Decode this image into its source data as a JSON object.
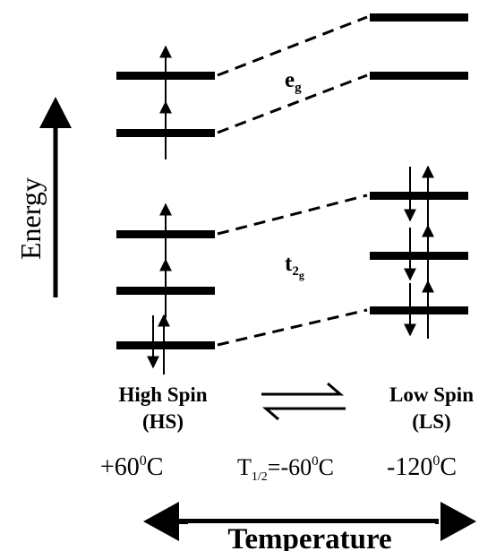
{
  "axis": {
    "energy_label": "Energy",
    "temperature_label": "Temperature"
  },
  "orbitals": {
    "eg": {
      "main": "e",
      "sub": "g"
    },
    "t2g": {
      "main": "t",
      "sub1": "2",
      "sub2": "g"
    }
  },
  "high_spin": {
    "title": "High Spin",
    "abbr": "(HS)",
    "temperature": {
      "main": "+60",
      "sup": "0",
      "unit": "C"
    }
  },
  "low_spin": {
    "title": "Low Spin",
    "abbr": "(LS)",
    "temperature": {
      "main": "-120",
      "sup": "0",
      "unit": "C"
    }
  },
  "transition": {
    "t_main": "T",
    "t_sub": "1/2",
    "value": "=-60",
    "sup": "0",
    "unit": "C"
  },
  "colors": {
    "ink": "#000000",
    "background": "#ffffff"
  },
  "electrons": {
    "high_spin": {
      "eg": [
        "up",
        "up"
      ],
      "t2g": [
        "up",
        "up",
        "up-down"
      ]
    },
    "low_spin": {
      "eg": [
        "empty",
        "empty"
      ],
      "t2g": [
        "up-down",
        "up-down",
        "up-down"
      ]
    }
  }
}
